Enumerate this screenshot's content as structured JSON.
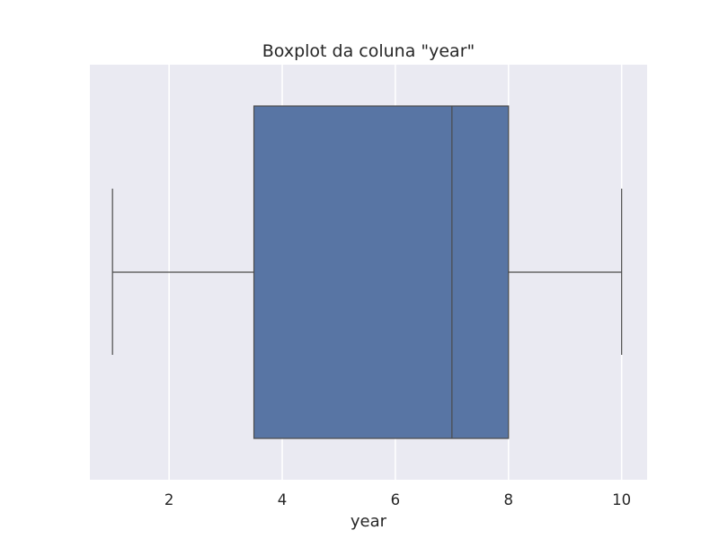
{
  "chart_data": {
    "type": "boxplot",
    "title": "Boxplot da coluna \"year\"",
    "xlabel": "year",
    "ylabel": "",
    "xlim": [
      0.6,
      10.45
    ],
    "xticks": [
      2,
      4,
      6,
      8,
      10
    ],
    "xtick_labels": [
      "2",
      "4",
      "6",
      "8",
      "10"
    ],
    "grid": true,
    "orientation": "horizontal",
    "box": {
      "whisker_low": 1,
      "q1": 3.5,
      "median": 7,
      "q3": 8,
      "whisker_high": 10
    },
    "colors": {
      "background": "#eaeaf2",
      "grid": "#ffffff",
      "box_fill": "#5875a4",
      "line": "#4a4a4a"
    }
  }
}
